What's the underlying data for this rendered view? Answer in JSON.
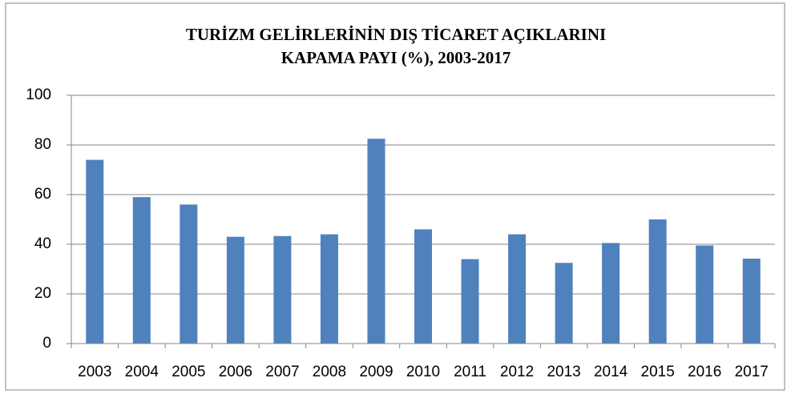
{
  "chart_data": {
    "type": "bar",
    "title": [
      "TURİZM GELİRLERİNİN DIŞ TİCARET AÇIKLARINI",
      "KAPAMA PAYI (%), 2003-2017"
    ],
    "categories": [
      "2003",
      "2004",
      "2005",
      "2006",
      "2007",
      "2008",
      "2009",
      "2010",
      "2011",
      "2012",
      "2013",
      "2014",
      "2015",
      "2016",
      "2017"
    ],
    "values": [
      74,
      59,
      56,
      43,
      43.3,
      44,
      82.5,
      46,
      34,
      44,
      32.5,
      40.5,
      50,
      39.5,
      34.2
    ],
    "color": "#4f81bd",
    "ylim": [
      0,
      100
    ],
    "yticks": [
      0,
      20,
      40,
      60,
      80,
      100
    ],
    "grid": true
  }
}
